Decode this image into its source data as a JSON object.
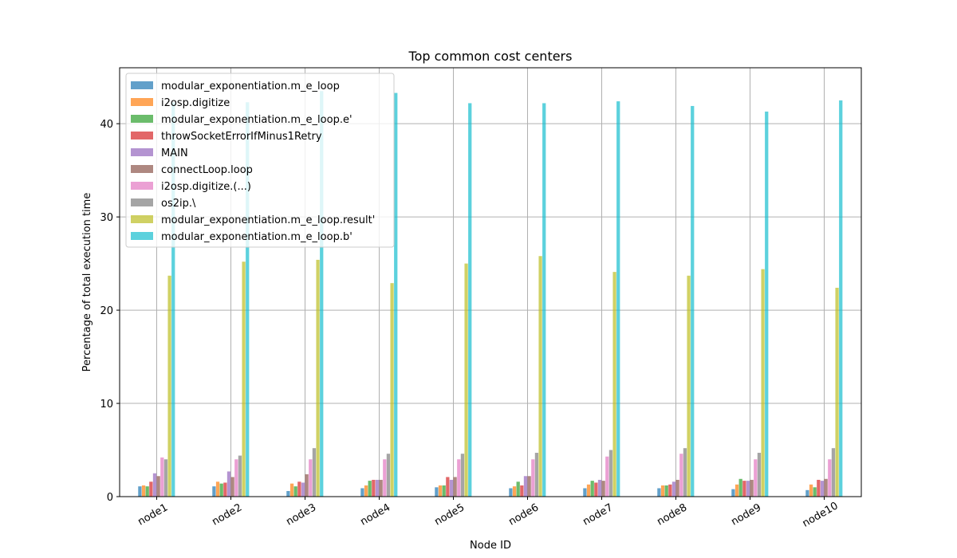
{
  "chart_data": {
    "type": "bar",
    "title": "Top common cost centers",
    "xlabel": "Node ID",
    "ylabel": "Percentage of total execution time",
    "ylim": [
      0,
      46
    ],
    "yticks": [
      0,
      10,
      20,
      30,
      40
    ],
    "grid": true,
    "legend_position": "top-left",
    "categories": [
      "node1",
      "node2",
      "node3",
      "node4",
      "node5",
      "node6",
      "node7",
      "node8",
      "node9",
      "node10"
    ],
    "series": [
      {
        "name": "modular_exponentiation.m_e_loop",
        "color": "#1f77b4",
        "values": [
          1.1,
          1.1,
          0.6,
          0.9,
          1.0,
          0.9,
          0.9,
          0.9,
          0.8,
          0.7
        ]
      },
      {
        "name": "i2osp.digitize",
        "color": "#ff7f0e",
        "values": [
          1.2,
          1.6,
          1.4,
          1.2,
          1.2,
          1.1,
          1.3,
          1.2,
          1.3,
          1.3
        ]
      },
      {
        "name": "modular_exponentiation.m_e_loop.e'",
        "color": "#2ca02c",
        "values": [
          1.1,
          1.4,
          1.1,
          1.7,
          1.2,
          1.6,
          1.7,
          1.2,
          1.9,
          1.0
        ]
      },
      {
        "name": "throwSocketErrorIfMinus1Retry",
        "color": "#d62728",
        "values": [
          1.6,
          1.5,
          1.6,
          1.8,
          2.1,
          1.2,
          1.5,
          1.3,
          1.7,
          1.8
        ]
      },
      {
        "name": "MAIN",
        "color": "#9467bd",
        "values": [
          2.5,
          2.7,
          1.5,
          1.8,
          1.8,
          2.2,
          1.8,
          1.6,
          1.7,
          1.7
        ]
      },
      {
        "name": "connectLoop.loop",
        "color": "#8c564b",
        "values": [
          2.2,
          2.1,
          2.4,
          1.8,
          2.1,
          2.2,
          1.7,
          1.8,
          1.8,
          1.9
        ]
      },
      {
        "name": "i2osp.digitize.(...)",
        "color": "#e377c2",
        "values": [
          4.2,
          4.0,
          4.0,
          4.0,
          4.0,
          4.0,
          4.3,
          4.6,
          4.0,
          4.0
        ]
      },
      {
        "name": "os2ip.\\",
        "color": "#7f7f7f",
        "values": [
          4.0,
          4.4,
          5.2,
          4.6,
          4.6,
          4.7,
          5.0,
          5.2,
          4.7,
          5.2
        ]
      },
      {
        "name": "modular_exponentiation.m_e_loop.result'",
        "color": "#bcbd22",
        "values": [
          23.7,
          25.2,
          25.4,
          22.9,
          25.0,
          25.8,
          24.1,
          23.7,
          24.4,
          22.4
        ]
      },
      {
        "name": "modular_exponentiation.m_e_loop.b'",
        "color": "#17becf",
        "values": [
          42.3,
          42.3,
          43.5,
          43.3,
          42.2,
          42.2,
          42.4,
          41.9,
          41.3,
          42.5
        ]
      }
    ]
  }
}
